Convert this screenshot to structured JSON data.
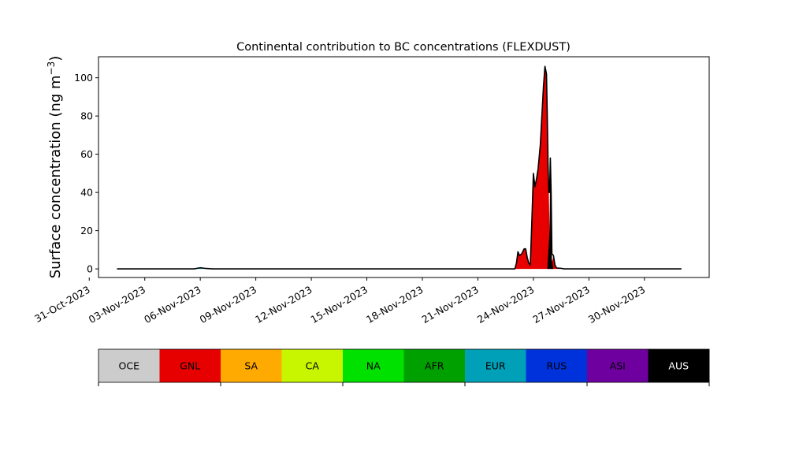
{
  "chart_data": {
    "type": "area",
    "title": "Continental contribution to BC concentrations (FLEXDUST)",
    "ylabel_main": "Surface concentration (ng m",
    "ylabel_unit_exp": "−3",
    "ylabel_close": ")",
    "xlabel": "",
    "stacked": true,
    "grid": false,
    "x_axis": "date",
    "xlim": [
      "2023-10-31T12:00",
      "2023-12-03T12:00"
    ],
    "ylim": [
      -4.5,
      111
    ],
    "yticks": [
      0,
      20,
      40,
      60,
      80,
      100
    ],
    "xtick_labels": [
      "31-Oct-2023",
      "03-Nov-2023",
      "06-Nov-2023",
      "09-Nov-2023",
      "12-Nov-2023",
      "15-Nov-2023",
      "18-Nov-2023",
      "21-Nov-2023",
      "24-Nov-2023",
      "27-Nov-2023",
      "30-Nov-2023"
    ],
    "xtick_dates": [
      "2023-10-31",
      "2023-11-03",
      "2023-11-06",
      "2023-11-09",
      "2023-11-12",
      "2023-11-15",
      "2023-11-18",
      "2023-11-21",
      "2023-11-24",
      "2023-11-27",
      "2023-11-30"
    ],
    "data_range": [
      "2023-11-01T12:00",
      "2023-12-02T00:00"
    ],
    "series": [
      {
        "name": "GNL",
        "color": "#e60000",
        "points": [
          [
            "2023-11-23T00:00",
            0
          ],
          [
            "2023-11-23T02:00",
            3
          ],
          [
            "2023-11-23T04:00",
            9
          ],
          [
            "2023-11-23T06:00",
            7
          ],
          [
            "2023-11-23T09:00",
            8
          ],
          [
            "2023-11-23T12:00",
            10.5
          ],
          [
            "2023-11-23T14:00",
            10.5
          ],
          [
            "2023-11-23T16:00",
            6
          ],
          [
            "2023-11-23T18:00",
            3
          ],
          [
            "2023-11-23T20:00",
            2
          ],
          [
            "2023-11-23T22:00",
            25
          ],
          [
            "2023-11-24T00:00",
            50
          ],
          [
            "2023-11-24T02:00",
            43
          ],
          [
            "2023-11-24T04:00",
            47
          ],
          [
            "2023-11-24T06:00",
            52
          ],
          [
            "2023-11-24T09:00",
            65
          ],
          [
            "2023-11-24T11:00",
            80
          ],
          [
            "2023-11-24T13:00",
            95
          ],
          [
            "2023-11-24T15:00",
            106
          ],
          [
            "2023-11-24T17:00",
            102
          ],
          [
            "2023-11-24T18:00",
            80
          ],
          [
            "2023-11-24T19:00",
            55
          ],
          [
            "2023-11-24T20:00",
            40
          ],
          [
            "2023-11-24T21:00",
            20
          ],
          [
            "2023-11-24T22:00",
            1
          ],
          [
            "2023-11-25T00:00",
            3
          ],
          [
            "2023-11-25T02:00",
            7
          ],
          [
            "2023-11-25T04:00",
            2
          ],
          [
            "2023-11-25T06:00",
            0.5
          ],
          [
            "2023-11-25T12:00",
            0.3
          ],
          [
            "2023-11-25T16:00",
            0
          ]
        ]
      },
      {
        "name": "AUS",
        "color": "#000000",
        "points": [
          [
            "2023-11-24T18:00",
            0
          ],
          [
            "2023-11-24T21:00",
            20
          ],
          [
            "2023-11-24T22:00",
            57
          ],
          [
            "2023-11-24T23:00",
            40
          ],
          [
            "2023-11-25T00:00",
            5
          ],
          [
            "2023-11-25T02:00",
            0
          ]
        ]
      },
      {
        "name": "EUR",
        "color": "#00a0b8",
        "points": [
          [
            "2023-11-05T16:00",
            0
          ],
          [
            "2023-11-06T00:00",
            0.6
          ],
          [
            "2023-11-06T08:00",
            0.2
          ],
          [
            "2023-11-06T16:00",
            0
          ]
        ]
      }
    ],
    "total_points": [
      [
        "2023-11-01T12:00",
        0
      ],
      [
        "2023-11-05T16:00",
        0
      ],
      [
        "2023-11-06T00:00",
        0.6
      ],
      [
        "2023-11-06T08:00",
        0.2
      ],
      [
        "2023-11-06T16:00",
        0
      ],
      [
        "2023-11-23T00:00",
        0
      ],
      [
        "2023-11-23T02:00",
        3
      ],
      [
        "2023-11-23T04:00",
        9
      ],
      [
        "2023-11-23T06:00",
        7
      ],
      [
        "2023-11-23T09:00",
        8
      ],
      [
        "2023-11-23T12:00",
        10.5
      ],
      [
        "2023-11-23T14:00",
        10.5
      ],
      [
        "2023-11-23T16:00",
        6
      ],
      [
        "2023-11-23T18:00",
        3
      ],
      [
        "2023-11-23T20:00",
        2
      ],
      [
        "2023-11-23T22:00",
        25
      ],
      [
        "2023-11-24T00:00",
        50
      ],
      [
        "2023-11-24T02:00",
        43
      ],
      [
        "2023-11-24T04:00",
        47
      ],
      [
        "2023-11-24T06:00",
        52
      ],
      [
        "2023-11-24T09:00",
        65
      ],
      [
        "2023-11-24T11:00",
        80
      ],
      [
        "2023-11-24T13:00",
        95
      ],
      [
        "2023-11-24T15:00",
        106
      ],
      [
        "2023-11-24T17:00",
        102
      ],
      [
        "2023-11-24T18:00",
        80
      ],
      [
        "2023-11-24T19:00",
        55
      ],
      [
        "2023-11-24T20:00",
        40
      ],
      [
        "2023-11-24T21:00",
        40
      ],
      [
        "2023-11-24T22:00",
        58
      ],
      [
        "2023-11-24T23:00",
        40
      ],
      [
        "2023-11-25T00:00",
        8
      ],
      [
        "2023-11-25T02:00",
        7
      ],
      [
        "2023-11-25T04:00",
        2
      ],
      [
        "2023-11-25T06:00",
        0.5
      ],
      [
        "2023-11-25T12:00",
        0.3
      ],
      [
        "2023-11-25T16:00",
        0
      ],
      [
        "2023-12-02T00:00",
        0
      ]
    ],
    "legend": {
      "placement": "bottom colorbar",
      "items": [
        {
          "label": "OCE",
          "color": "#cccccc",
          "text_color": "#000000"
        },
        {
          "label": "GNL",
          "color": "#e60000",
          "text_color": "#000000"
        },
        {
          "label": "SA",
          "color": "#ffaa00",
          "text_color": "#000000"
        },
        {
          "label": "CA",
          "color": "#c8f500",
          "text_color": "#000000"
        },
        {
          "label": "NA",
          "color": "#00e100",
          "text_color": "#000000"
        },
        {
          "label": "AFR",
          "color": "#00a000",
          "text_color": "#000000"
        },
        {
          "label": "EUR",
          "color": "#00a0b8",
          "text_color": "#000000"
        },
        {
          "label": "RUS",
          "color": "#0032dc",
          "text_color": "#000000"
        },
        {
          "label": "ASI",
          "color": "#6e00a0",
          "text_color": "#000000"
        },
        {
          "label": "AUS",
          "color": "#000000",
          "text_color": "#ffffff"
        }
      ]
    }
  }
}
